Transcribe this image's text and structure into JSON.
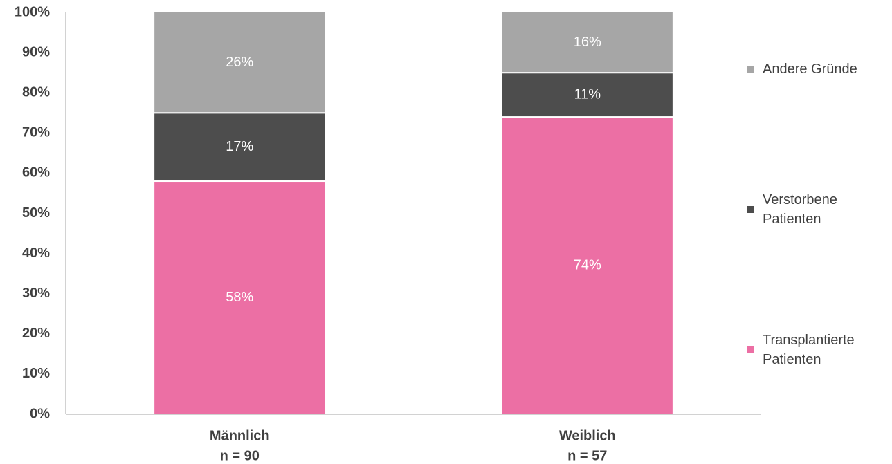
{
  "chart_data": {
    "type": "stacked_bar",
    "categories": [
      "Männlich",
      "Weiblich"
    ],
    "category_notes": [
      "n = 90",
      "n = 57"
    ],
    "series": [
      {
        "name": "Transplantierte Patienten",
        "color": "#ec6fa4",
        "values": [
          58,
          74
        ],
        "value_labels": [
          "58%",
          "74%"
        ]
      },
      {
        "name": "Verstorbene Patienten",
        "color": "#4d4d4d",
        "values": [
          17,
          11
        ],
        "value_labels": [
          "17%",
          "11%"
        ]
      },
      {
        "name": "Andere Gründe",
        "color": "#a6a6a6",
        "values": [
          26,
          16
        ],
        "value_labels": [
          "26%",
          "16%"
        ]
      }
    ],
    "ylim": [
      0,
      100
    ],
    "yticks": [
      {
        "value": 0,
        "label": "0%"
      },
      {
        "value": 10,
        "label": "10%"
      },
      {
        "value": 20,
        "label": "20%"
      },
      {
        "value": 30,
        "label": "30%"
      },
      {
        "value": 40,
        "label": "40%"
      },
      {
        "value": 50,
        "label": "50%"
      },
      {
        "value": 60,
        "label": "60%"
      },
      {
        "value": 70,
        "label": "70%"
      },
      {
        "value": 80,
        "label": "80%"
      },
      {
        "value": 90,
        "label": "90%"
      },
      {
        "value": 100,
        "label": "100%"
      }
    ],
    "grid": false,
    "legend": "right"
  }
}
